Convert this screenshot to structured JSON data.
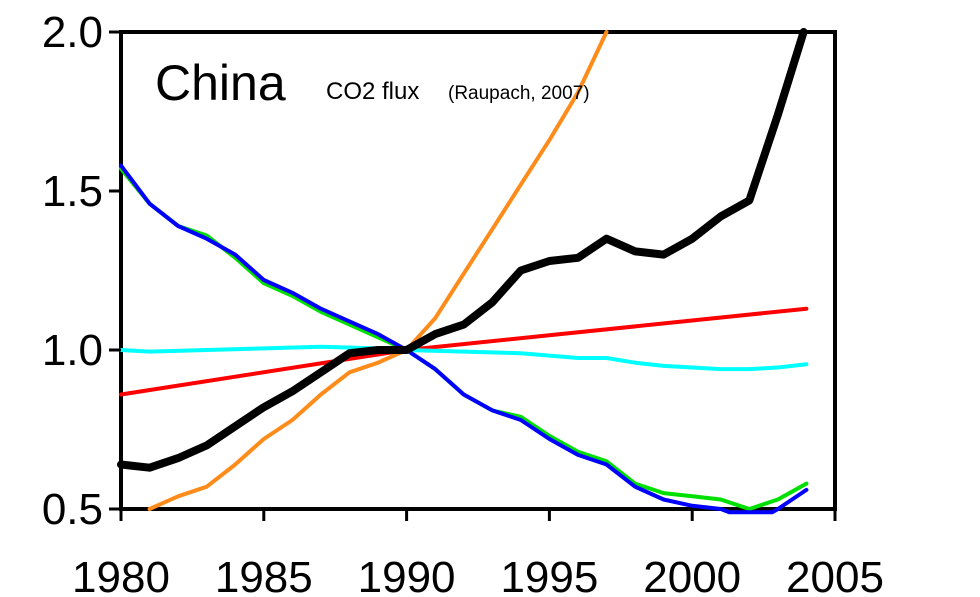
{
  "chart_data": {
    "type": "line",
    "title": "China",
    "subtitle": "CO2 flux",
    "citation": "(Raupach, 2007)",
    "xlabel": "",
    "ylabel": "",
    "xlim": [
      1980,
      2005
    ],
    "ylim": [
      0.5,
      2.0
    ],
    "x_ticks": [
      1980,
      1985,
      1990,
      1995,
      2000,
      2005
    ],
    "x_tick_labels": [
      "1980",
      "1985",
      "1990",
      "1995",
      "2000",
      "2005"
    ],
    "y_ticks": [
      0.5,
      1.0,
      1.5,
      2.0
    ],
    "y_tick_labels": [
      "0.5",
      "1.0",
      "1.5",
      "2.0"
    ],
    "grid": false,
    "legend": "none",
    "series": [
      {
        "color": "#FF0000",
        "width": "thin",
        "x": [
          1980,
          1990,
          2004
        ],
        "y": [
          0.86,
          1.0,
          1.13
        ]
      },
      {
        "color": "#00FFFF",
        "width": "thin",
        "x": [
          1980,
          1981,
          1983,
          1985,
          1987,
          1989,
          1990,
          1992,
          1994,
          1996,
          1997,
          1998,
          1999,
          2000,
          2001,
          2002,
          2003,
          2004
        ],
        "y": [
          1.0,
          0.995,
          1.0,
          1.005,
          1.01,
          1.005,
          1.0,
          0.995,
          0.99,
          0.975,
          0.975,
          0.96,
          0.95,
          0.945,
          0.94,
          0.94,
          0.945,
          0.955
        ]
      },
      {
        "color": "#00E000",
        "width": "thin",
        "x": [
          1980,
          1981,
          1982,
          1983,
          1984,
          1985,
          1986,
          1987,
          1988,
          1989,
          1990,
          1991,
          1992,
          1993,
          1994,
          1995,
          1996,
          1997,
          1998,
          1999,
          2000,
          2001,
          2002,
          2003,
          2004
        ],
        "y": [
          1.57,
          1.46,
          1.39,
          1.36,
          1.29,
          1.21,
          1.17,
          1.12,
          1.08,
          1.04,
          1.0,
          0.94,
          0.86,
          0.81,
          0.79,
          0.73,
          0.68,
          0.65,
          0.58,
          0.55,
          0.54,
          0.53,
          0.5,
          0.53,
          0.58
        ]
      },
      {
        "color": "#0000FF",
        "width": "thin",
        "x": [
          1980,
          1981,
          1982,
          1983,
          1984,
          1985,
          1986,
          1987,
          1988,
          1989,
          1990,
          1991,
          1992,
          1993,
          1994,
          1995,
          1996,
          1997,
          1998,
          1999,
          2000,
          2001,
          2001.3,
          2002.8,
          2003,
          2004
        ],
        "y": [
          1.58,
          1.46,
          1.39,
          1.35,
          1.3,
          1.22,
          1.18,
          1.13,
          1.09,
          1.05,
          1.0,
          0.94,
          0.86,
          0.81,
          0.78,
          0.72,
          0.67,
          0.64,
          0.57,
          0.53,
          0.51,
          0.5,
          0.49,
          0.49,
          0.5,
          0.56
        ]
      },
      {
        "color": "#FF8C1A",
        "width": "thin",
        "x": [
          1981,
          1982,
          1983,
          1984,
          1985,
          1986,
          1987,
          1988,
          1989,
          1990,
          1991,
          1992,
          1993,
          1994,
          1995,
          1996,
          1997
        ],
        "y": [
          0.5,
          0.54,
          0.57,
          0.64,
          0.72,
          0.78,
          0.86,
          0.93,
          0.96,
          1.0,
          1.1,
          1.24,
          1.38,
          1.52,
          1.66,
          1.81,
          2.0
        ]
      },
      {
        "color": "#000000",
        "width": "thick",
        "x": [
          1980,
          1981,
          1982,
          1983,
          1984,
          1985,
          1986,
          1987,
          1988,
          1989,
          1990,
          1991,
          1992,
          1993,
          1994,
          1995,
          1996,
          1997,
          1998,
          1999,
          2000,
          2001,
          2002,
          2003,
          2003.9
        ],
        "y": [
          0.64,
          0.63,
          0.66,
          0.7,
          0.76,
          0.82,
          0.87,
          0.93,
          0.99,
          1.0,
          1.0,
          1.05,
          1.08,
          1.15,
          1.25,
          1.28,
          1.29,
          1.35,
          1.31,
          1.3,
          1.35,
          1.42,
          1.47,
          1.74,
          2.0
        ]
      }
    ]
  }
}
